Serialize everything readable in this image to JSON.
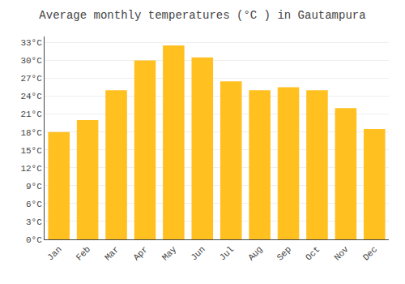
{
  "chart_data": {
    "type": "bar",
    "title": "Average monthly temperatures (°C ) in Gautampura",
    "categories": [
      "Jan",
      "Feb",
      "Mar",
      "Apr",
      "May",
      "Jun",
      "Jul",
      "Aug",
      "Sep",
      "Oct",
      "Nov",
      "Dec"
    ],
    "values": [
      18,
      20,
      25,
      30,
      32.5,
      30.5,
      26.5,
      25,
      25.5,
      25,
      22,
      18.5
    ],
    "color": "#FFC020",
    "ylim": [
      0,
      34
    ],
    "yticks": [
      {
        "value": 0,
        "label": "0°C"
      },
      {
        "value": 3,
        "label": "3°C"
      },
      {
        "value": 6,
        "label": "6°C"
      },
      {
        "value": 9,
        "label": "9°C"
      },
      {
        "value": 12,
        "label": "12°C"
      },
      {
        "value": 15,
        "label": "15°C"
      },
      {
        "value": 18,
        "label": "18°C"
      },
      {
        "value": 21,
        "label": "21°C"
      },
      {
        "value": 24,
        "label": "24°C"
      },
      {
        "value": 27,
        "label": "27°C"
      },
      {
        "value": 30,
        "label": "30°C"
      },
      {
        "value": 33,
        "label": "33°C"
      }
    ],
    "grid": true
  }
}
